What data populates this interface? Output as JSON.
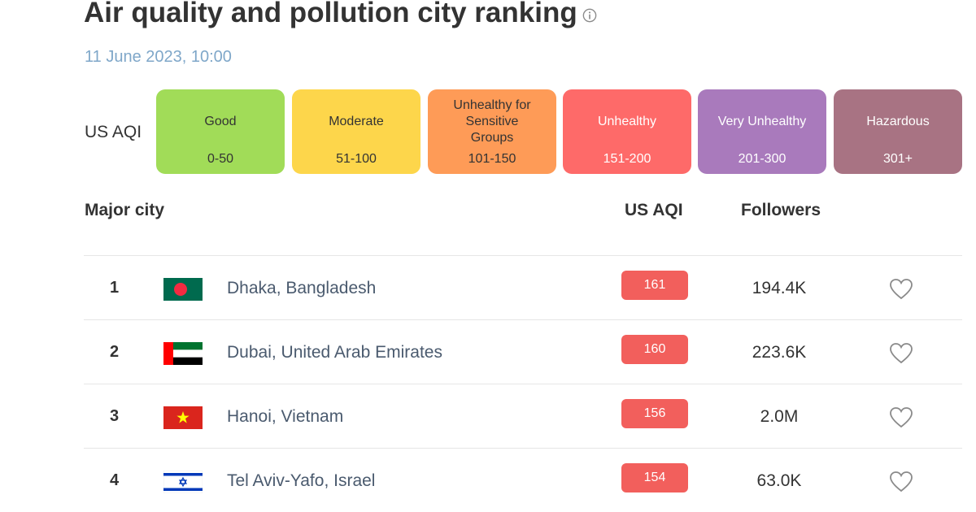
{
  "header": {
    "title": "Air quality and pollution city ranking",
    "date": "11 June 2023, 10:00"
  },
  "legend": {
    "label": "US AQI",
    "items": [
      {
        "name": "Good",
        "range": "0-50",
        "color": "#a1dc58"
      },
      {
        "name": "Moderate",
        "range": "51-100",
        "color": "#fdd64b"
      },
      {
        "name": "Unhealthy for Sensitive Groups",
        "range": "101-150",
        "color": "#fe9b57"
      },
      {
        "name": "Unhealthy",
        "range": "151-200",
        "color": "#fe6a69"
      },
      {
        "name": "Very Unhealthy",
        "range": "201-300",
        "color": "#a97abc"
      },
      {
        "name": "Hazardous",
        "range": "301+",
        "color": "#a87383"
      }
    ]
  },
  "table": {
    "headers": {
      "city": "Major city",
      "aqi": "US AQI",
      "followers": "Followers"
    },
    "rows": [
      {
        "rank": "1",
        "city": "Dhaka, Bangladesh",
        "aqi": "161",
        "followers": "194.4K",
        "flag": "bangladesh"
      },
      {
        "rank": "2",
        "city": "Dubai, United Arab Emirates",
        "aqi": "160",
        "followers": "223.6K",
        "flag": "uae"
      },
      {
        "rank": "3",
        "city": "Hanoi, Vietnam",
        "aqi": "156",
        "followers": "2.0M",
        "flag": "vietnam"
      },
      {
        "rank": "4",
        "city": "Tel Aviv-Yafo, Israel",
        "aqi": "154",
        "followers": "63.0K",
        "flag": "israel"
      }
    ]
  },
  "colors": {
    "badge": "#f25f5c",
    "date": "#7fa7c9"
  }
}
